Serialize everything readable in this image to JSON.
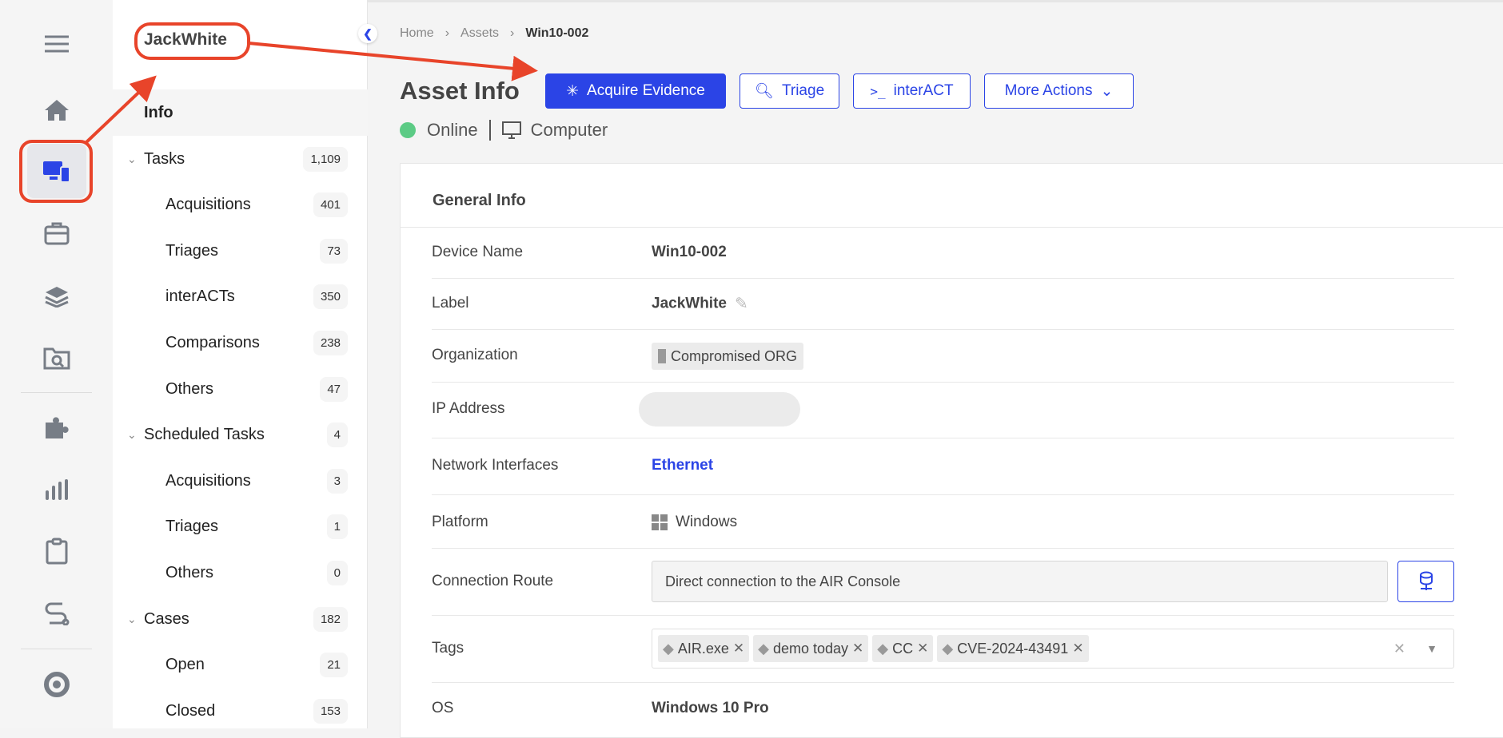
{
  "rail": {
    "items": [
      "menu-icon",
      "home-icon",
      "devices-icon",
      "briefcase-icon",
      "layers-icon",
      "folder-search-icon",
      "puzzle-icon",
      "chart-icon",
      "clipboard-icon",
      "route-icon",
      "logo-icon"
    ],
    "active": "devices-icon"
  },
  "sidebar": {
    "title": "JackWhite",
    "info": "Info",
    "items": [
      {
        "label": "Tasks",
        "count": "1,109",
        "group": true
      },
      {
        "label": "Acquisitions",
        "count": "401"
      },
      {
        "label": "Triages",
        "count": "73"
      },
      {
        "label": "interACTs",
        "count": "350"
      },
      {
        "label": "Comparisons",
        "count": "238"
      },
      {
        "label": "Others",
        "count": "47"
      },
      {
        "label": "Scheduled Tasks",
        "count": "4",
        "group": true
      },
      {
        "label": "Acquisitions",
        "count": "3"
      },
      {
        "label": "Triages",
        "count": "1"
      },
      {
        "label": "Others",
        "count": "0"
      },
      {
        "label": "Cases",
        "count": "182",
        "group": true
      },
      {
        "label": "Open",
        "count": "21"
      },
      {
        "label": "Closed",
        "count": "153"
      }
    ]
  },
  "breadcrumb": [
    "Home",
    "Assets",
    "Win10-002"
  ],
  "header": {
    "title": "Asset Info",
    "actions": {
      "acquire": "Acquire Evidence",
      "triage": "Triage",
      "interact": "interACT",
      "more": "More Actions"
    },
    "status": "Online",
    "status_color": "#5ccb85",
    "type": "Computer"
  },
  "card": {
    "title": "General Info",
    "rows": {
      "device_name": {
        "label": "Device Name",
        "value": "Win10-002"
      },
      "label": {
        "label": "Label",
        "value": "JackWhite"
      },
      "organization": {
        "label": "Organization",
        "value": "Compromised ORG"
      },
      "ip": {
        "label": "IP Address"
      },
      "network": {
        "label": "Network Interfaces",
        "value": "Ethernet"
      },
      "platform": {
        "label": "Platform",
        "value": "Windows"
      },
      "connection": {
        "label": "Connection Route",
        "value": "Direct connection to the AIR Console"
      },
      "tags": {
        "label": "Tags",
        "values": [
          "AIR.exe",
          "demo today",
          "CC",
          "CVE-2024-43491"
        ]
      },
      "os": {
        "label": "OS",
        "value": "Windows 10 Pro"
      }
    }
  },
  "colors": {
    "accent": "#2b44e6",
    "annotation": "#e8442a"
  }
}
